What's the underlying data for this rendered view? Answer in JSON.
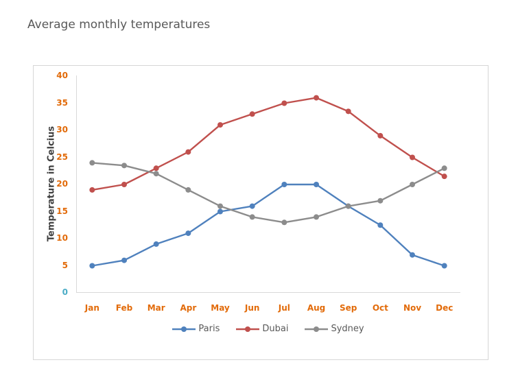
{
  "chart_data": {
    "type": "line",
    "title": "Average monthly temperatures",
    "xlabel": "",
    "ylabel": "Temperature in Celcius",
    "ylim": [
      0,
      40
    ],
    "y_ticks": [
      0,
      5,
      10,
      15,
      20,
      25,
      30,
      35,
      40
    ],
    "grid": false,
    "legend_position": "bottom",
    "axis_tick_color": "#E26B0A",
    "zero_tick_color": "#4BACC6",
    "categories": [
      "Jan",
      "Feb",
      "Mar",
      "Apr",
      "May",
      "Jun",
      "Jul",
      "Aug",
      "Sep",
      "Oct",
      "Nov",
      "Dec"
    ],
    "series": [
      {
        "name": "Paris",
        "color": "#4F81BD",
        "values": [
          5,
          6,
          9,
          11,
          15,
          16,
          20,
          20,
          16,
          12.5,
          7,
          5
        ]
      },
      {
        "name": "Dubai",
        "color": "#C0504D",
        "values": [
          19,
          20,
          23,
          26,
          31,
          33,
          35,
          36,
          33.5,
          29,
          25,
          21.5
        ]
      },
      {
        "name": "Sydney",
        "color": "#8C8C8C",
        "values": [
          24,
          23.5,
          22,
          19,
          16,
          14,
          13,
          14,
          16,
          17,
          20,
          23
        ]
      }
    ]
  }
}
